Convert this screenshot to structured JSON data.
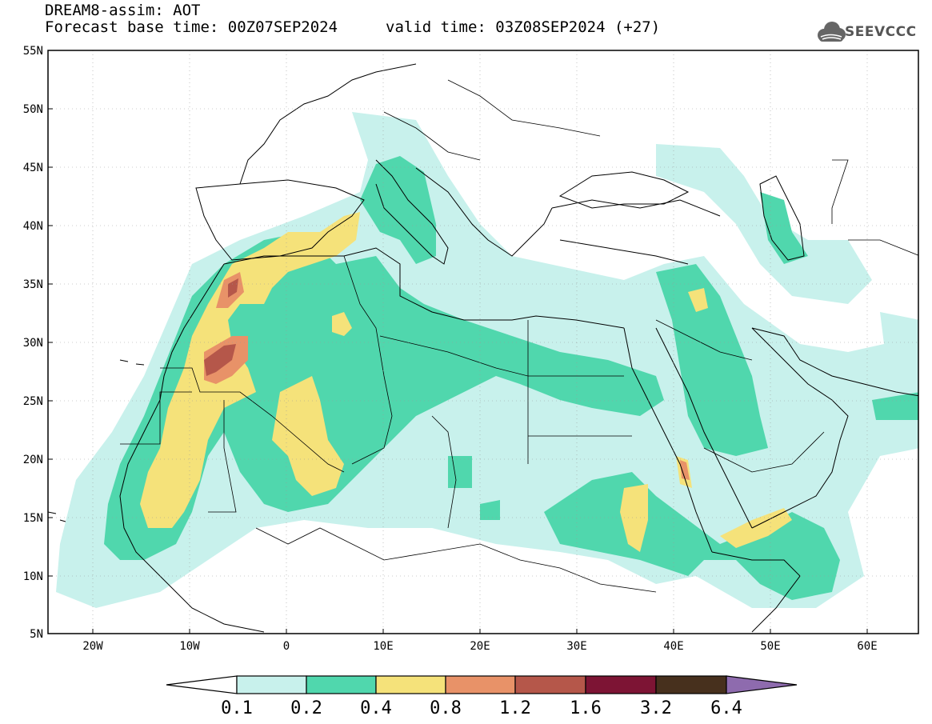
{
  "header": {
    "title": "DREAM8-assim: AOT",
    "base_time": "Forecast base time: 00Z07SEP2024",
    "valid_time": "valid time: 03Z08SEP2024 (+27)"
  },
  "logo": {
    "text": "SEEVCCC",
    "icon": "cloud-logo-icon"
  },
  "map": {
    "lon_range": [
      -25,
      65
    ],
    "lat_range": [
      5,
      55
    ],
    "lat_labels": [
      "55N",
      "50N",
      "45N",
      "40N",
      "35N",
      "30N",
      "25N",
      "20N",
      "15N",
      "10N",
      "5N"
    ],
    "lon_labels": [
      "20W",
      "10W",
      "0",
      "10E",
      "20E",
      "30E",
      "40E",
      "50E",
      "60E"
    ],
    "grid": "dotted"
  },
  "colorbar": {
    "labels": [
      "0.1",
      "0.2",
      "0.4",
      "0.8",
      "1.2",
      "1.6",
      "3.2",
      "6.4"
    ],
    "colors": [
      "#c8f1ec",
      "#50d7ad",
      "#f5e27a",
      "#e89268",
      "#b5574a",
      "#7d1434",
      "#47301d",
      "#8e6bae"
    ]
  },
  "colors": {
    "c1": "#c8f1ec",
    "c2": "#50d7ad",
    "c3": "#f5e27a",
    "c4": "#e89268",
    "c5": "#b5574a"
  }
}
